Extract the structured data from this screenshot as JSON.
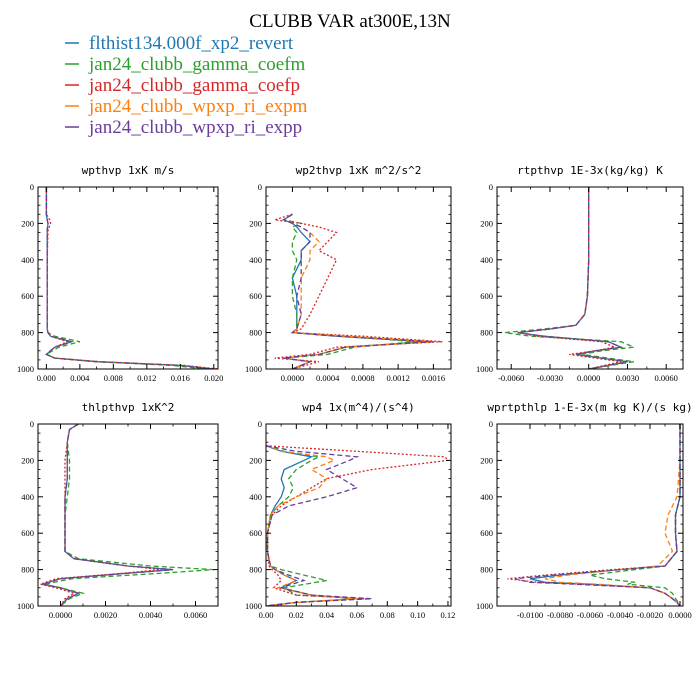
{
  "chart_data": {
    "title": "CLUBB VAR at300E,13N",
    "type": "line",
    "legend": [
      {
        "name": "flthist134.000f_xp2_revert",
        "color": "#1f77b4",
        "dash": "solid"
      },
      {
        "name": "jan24_clubb_gamma_coefm",
        "color": "#2ca02c",
        "dash": "dash"
      },
      {
        "name": "jan24_clubb_gamma_coefp",
        "color": "#d62728",
        "dash": "dot"
      },
      {
        "name": "jan24_clubb_wpxp_ri_expm",
        "color": "#ff7f0e",
        "dash": "dash"
      },
      {
        "name": "jan24_clubb_wpxp_ri_expp",
        "color": "#6a3d9a",
        "dash": "dash"
      }
    ],
    "panels": [
      {
        "title": "wpthvp  1xK m/s",
        "xlim": [
          -0.001,
          0.0205
        ],
        "ylim": [
          1000,
          0
        ],
        "xticks": [
          0.0,
          0.004,
          0.008,
          0.012,
          0.016,
          0.02
        ],
        "xticklabels": [
          "0.000",
          "0.004",
          "0.008",
          "0.012",
          "0.016",
          "0.020"
        ],
        "yticks": [
          0,
          200,
          400,
          600,
          800,
          1000
        ],
        "y": [
          0,
          150,
          180,
          200,
          240,
          400,
          600,
          780,
          800,
          820,
          850,
          880,
          920,
          940,
          960,
          980,
          1000
        ],
        "series": [
          [
            0.0,
            0.0,
            0.0001,
            0.0002,
            0.0001,
            0.0001,
            0.0001,
            0.0001,
            0.0002,
            0.0005,
            0.003,
            0.001,
            0.0,
            0.001,
            0.006,
            0.016,
            0.02
          ],
          [
            0.0,
            0.0,
            0.0001,
            0.0002,
            0.0001,
            0.0001,
            0.0001,
            0.0001,
            0.0002,
            0.001,
            0.004,
            0.0015,
            0.0,
            0.001,
            0.006,
            0.015,
            0.019
          ],
          [
            0.0,
            0.0,
            0.0004,
            0.0005,
            0.0002,
            0.0001,
            0.0001,
            0.0001,
            0.0002,
            0.0005,
            0.0025,
            0.001,
            0.0,
            0.001,
            0.0065,
            0.0165,
            0.0205
          ],
          [
            0.0,
            0.0,
            0.0001,
            0.0002,
            0.0001,
            0.0001,
            0.0001,
            0.0001,
            0.0002,
            0.0005,
            0.003,
            0.001,
            0.0,
            0.001,
            0.006,
            0.016,
            0.02
          ],
          [
            0.0,
            0.0,
            0.0001,
            0.0002,
            0.0001,
            0.0001,
            0.0001,
            0.0001,
            0.0002,
            0.0005,
            0.003,
            0.001,
            0.0,
            0.001,
            0.006,
            0.016,
            0.02
          ]
        ]
      },
      {
        "title": "wp2thvp  1xK m^2/s^2",
        "xlim": [
          -0.0003,
          0.0018
        ],
        "ylim": [
          1000,
          0
        ],
        "xticks": [
          0.0,
          0.0004,
          0.0008,
          0.0012,
          0.0016
        ],
        "xticklabels": [
          "0.0000",
          "0.0004",
          "0.0008",
          "0.0012",
          "0.0016"
        ],
        "yticks": [
          0,
          200,
          400,
          600,
          800,
          1000
        ],
        "y": [
          150,
          180,
          200,
          220,
          250,
          300,
          350,
          400,
          500,
          600,
          700,
          780,
          800,
          820,
          850,
          880,
          920,
          940,
          960,
          1000
        ],
        "series": [
          [
            0.0,
            -0.0001,
            0.0,
            5e-05,
            0.0001,
            0.0002,
            0.0001,
            0.0001,
            0.0,
            5e-05,
            5e-05,
            5e-05,
            0.0,
            0.0005,
            0.0015,
            0.0006,
            0.0003,
            -0.0001,
            0.0002,
            0.0
          ],
          [
            0.0,
            -0.0001,
            0.0001,
            0.0,
            5e-05,
            0.0,
            0.0,
            5e-05,
            0.0,
            0.0,
            5e-05,
            5e-05,
            0.0,
            0.0006,
            0.0014,
            0.0007,
            0.0004,
            -0.0001,
            0.0002,
            0.0
          ],
          [
            0.0,
            -0.0002,
            0.0001,
            0.0003,
            0.0005,
            0.0004,
            0.0003,
            0.0005,
            0.0004,
            0.0003,
            0.0002,
            0.0001,
            0.0,
            0.0008,
            0.0017,
            0.0005,
            0.0002,
            -0.0002,
            0.0003,
            0.0
          ],
          [
            0.0,
            -0.0001,
            0.0,
            0.0001,
            0.0002,
            0.0003,
            0.0002,
            0.0002,
            0.0001,
            0.0001,
            0.0001,
            5e-05,
            0.0,
            0.0006,
            0.0016,
            0.0006,
            0.0003,
            -0.0001,
            0.0002,
            0.0
          ],
          [
            0.0,
            -0.0001,
            0.0,
            0.0001,
            0.0002,
            0.0002,
            0.0001,
            0.0001,
            0.0001,
            5e-05,
            0.0001,
            5e-05,
            0.0,
            0.0005,
            0.0016,
            0.0006,
            0.0003,
            -0.0001,
            0.0002,
            0.0
          ]
        ]
      },
      {
        "title": "rtpthvp  1E-3x(kg/kg) K",
        "xlim": [
          -0.0071,
          0.0073
        ],
        "ylim": [
          1000,
          0
        ],
        "xticks": [
          -0.006,
          -0.003,
          0.0,
          0.003,
          0.006
        ],
        "xticklabels": [
          "-0.0060",
          "-0.0030",
          "0.0000",
          "0.0030",
          "0.0060"
        ],
        "yticks": [
          0,
          200,
          400,
          600,
          800,
          1000
        ],
        "y": [
          0,
          200,
          400,
          600,
          700,
          760,
          780,
          800,
          820,
          850,
          880,
          900,
          920,
          940,
          960,
          1000
        ],
        "series": [
          [
            0.0,
            0.0,
            0.0,
            -0.0001,
            -0.0003,
            -0.001,
            -0.003,
            -0.0055,
            -0.0035,
            0.0015,
            0.0025,
            0.0005,
            -0.001,
            0.001,
            0.003,
            0.0
          ],
          [
            0.0,
            0.0,
            0.0,
            -0.0001,
            -0.0003,
            -0.001,
            -0.0035,
            -0.0065,
            -0.0045,
            0.0025,
            0.0035,
            0.001,
            -0.0005,
            0.0015,
            0.0035,
            0.0
          ],
          [
            0.0,
            0.0,
            0.0,
            -0.0001,
            -0.0003,
            -0.001,
            -0.003,
            -0.0055,
            -0.004,
            0.001,
            0.002,
            0.0005,
            -0.0015,
            0.0005,
            0.0025,
            0.0
          ],
          [
            0.0,
            0.0,
            0.0,
            -0.0001,
            -0.0003,
            -0.001,
            -0.003,
            -0.0055,
            -0.0035,
            0.0015,
            0.0025,
            0.0005,
            -0.001,
            0.001,
            0.003,
            0.0
          ],
          [
            0.0,
            0.0,
            0.0,
            -0.0001,
            -0.0003,
            -0.001,
            -0.003,
            -0.0055,
            -0.0035,
            0.0015,
            0.0025,
            0.0005,
            -0.001,
            0.001,
            0.003,
            0.0
          ]
        ]
      },
      {
        "title": "thlpthvp  1xK^2",
        "xlim": [
          -0.001,
          0.007
        ],
        "ylim": [
          1000,
          0
        ],
        "xticks": [
          0.0,
          0.002,
          0.004,
          0.006
        ],
        "xticklabels": [
          "0.0000",
          "0.0020",
          "0.0040",
          "0.0060"
        ],
        "yticks": [
          0,
          200,
          400,
          600,
          800,
          1000
        ],
        "y": [
          0,
          30,
          100,
          200,
          300,
          400,
          500,
          600,
          700,
          740,
          780,
          800,
          820,
          850,
          880,
          900,
          930,
          960,
          1000
        ],
        "series": [
          [
            0.0008,
            0.0004,
            0.0003,
            0.0003,
            0.0003,
            0.0002,
            0.0002,
            0.0002,
            0.0002,
            0.0006,
            0.003,
            0.005,
            0.003,
            0.0,
            -0.0008,
            0.0,
            0.0008,
            0.0003,
            0.0
          ],
          [
            0.0008,
            0.0004,
            0.0003,
            0.0004,
            0.0004,
            0.0003,
            0.0002,
            0.0002,
            0.0002,
            0.0008,
            0.004,
            0.0068,
            0.0045,
            0.0005,
            -0.0007,
            0.0,
            0.001,
            0.0004,
            0.0
          ],
          [
            0.0008,
            0.0004,
            0.0003,
            0.0002,
            0.0002,
            0.0002,
            0.0002,
            0.0002,
            0.0002,
            0.0006,
            0.003,
            0.0045,
            0.0028,
            -0.0002,
            -0.0009,
            -0.0002,
            0.0006,
            0.0002,
            0.0
          ],
          [
            0.0008,
            0.0004,
            0.0003,
            0.0003,
            0.0003,
            0.0002,
            0.0002,
            0.0002,
            0.0002,
            0.0006,
            0.003,
            0.005,
            0.003,
            0.0,
            -0.0008,
            0.0,
            0.0008,
            0.0003,
            0.0
          ],
          [
            0.0008,
            0.0004,
            0.0003,
            0.0003,
            0.0003,
            0.0002,
            0.0002,
            0.0002,
            0.0002,
            0.0006,
            0.003,
            0.005,
            0.003,
            0.0,
            -0.0008,
            0.0,
            0.0008,
            0.0003,
            0.0
          ]
        ]
      },
      {
        "title": "wp4  1x(m^4)/(s^4)",
        "xlim": [
          0.0,
          0.122
        ],
        "ylim": [
          1000,
          0
        ],
        "xticks": [
          0.0,
          0.02,
          0.04,
          0.06,
          0.08,
          0.1,
          0.12
        ],
        "xticklabels": [
          "0.00",
          "0.02",
          "0.04",
          "0.06",
          "0.08",
          "0.10",
          "0.12"
        ],
        "yticks": [
          0,
          200,
          400,
          600,
          800,
          1000
        ],
        "y": [
          120,
          150,
          180,
          200,
          250,
          300,
          350,
          400,
          450,
          500,
          600,
          700,
          780,
          800,
          830,
          860,
          900,
          940,
          960,
          980,
          1000
        ],
        "series": [
          [
            0.0,
            0.01,
            0.03,
            0.025,
            0.012,
            0.01,
            0.012,
            0.01,
            0.006,
            0.003,
            0.001,
            0.001,
            0.003,
            0.006,
            0.012,
            0.02,
            0.01,
            0.03,
            0.06,
            0.02,
            0.0
          ],
          [
            0.0,
            0.012,
            0.035,
            0.03,
            0.02,
            0.015,
            0.018,
            0.015,
            0.008,
            0.003,
            0.001,
            0.001,
            0.003,
            0.01,
            0.025,
            0.04,
            0.012,
            0.02,
            0.065,
            0.02,
            0.0
          ],
          [
            0.0,
            0.06,
            0.118,
            0.12,
            0.07,
            0.04,
            0.03,
            0.02,
            0.01,
            0.004,
            0.001,
            0.001,
            0.002,
            0.004,
            0.008,
            0.01,
            0.005,
            0.02,
            0.065,
            0.02,
            0.0
          ],
          [
            0.0,
            0.01,
            0.04,
            0.045,
            0.03,
            0.04,
            0.035,
            0.02,
            0.008,
            0.003,
            0.001,
            0.001,
            0.003,
            0.006,
            0.012,
            0.02,
            0.008,
            0.03,
            0.06,
            0.02,
            0.0
          ],
          [
            0.0,
            0.02,
            0.06,
            0.055,
            0.04,
            0.05,
            0.06,
            0.04,
            0.015,
            0.004,
            0.001,
            0.001,
            0.003,
            0.006,
            0.015,
            0.025,
            0.01,
            0.03,
            0.07,
            0.02,
            0.0
          ]
        ]
      },
      {
        "title": "wprtpthlp  1-E-3x(m kg K)/(s kg)",
        "xlim": [
          -0.0122,
          0.0002
        ],
        "ylim": [
          1000,
          0
        ],
        "xticks": [
          -0.01,
          -0.008,
          -0.006,
          -0.004,
          -0.002,
          0.0
        ],
        "xticklabels": [
          "-0.0100",
          "-0.0080",
          "-0.0060",
          "-0.0040",
          "-0.0020",
          "0.0000"
        ],
        "yticks": [
          0,
          200,
          400,
          600,
          800,
          1000
        ],
        "y": [
          0,
          200,
          400,
          500,
          600,
          700,
          780,
          800,
          830,
          850,
          870,
          880,
          900,
          930,
          960,
          980,
          1000
        ],
        "series": [
          [
            0.0,
            0.0,
            0.0,
            -0.0003,
            -0.0003,
            -0.0002,
            -0.001,
            -0.004,
            -0.008,
            -0.01,
            -0.009,
            -0.006,
            -0.002,
            -0.001,
            -0.0005,
            -0.0002,
            0.0
          ],
          [
            0.0,
            0.0,
            0.0,
            -0.0003,
            -0.0003,
            -0.0002,
            -0.001,
            -0.003,
            -0.006,
            -0.005,
            -0.003,
            -0.0035,
            -0.001,
            -0.0005,
            -0.0003,
            -0.0001,
            0.0
          ],
          [
            0.0,
            0.0,
            0.0,
            -0.0003,
            -0.0003,
            -0.0002,
            -0.001,
            -0.0045,
            -0.009,
            -0.0115,
            -0.0095,
            -0.0065,
            -0.002,
            -0.001,
            -0.0005,
            -0.0002,
            0.0
          ],
          [
            0.0,
            0.0,
            -0.0002,
            -0.0008,
            -0.001,
            -0.0005,
            -0.0015,
            -0.004,
            -0.0075,
            -0.009,
            -0.008,
            -0.0055,
            -0.002,
            -0.001,
            -0.0005,
            -0.0002,
            0.0
          ],
          [
            0.0,
            0.0,
            0.0,
            -0.0003,
            -0.0003,
            -0.0002,
            -0.001,
            -0.004,
            -0.0085,
            -0.011,
            -0.01,
            -0.007,
            -0.002,
            -0.001,
            -0.0005,
            -0.0002,
            0.0
          ]
        ]
      }
    ]
  }
}
